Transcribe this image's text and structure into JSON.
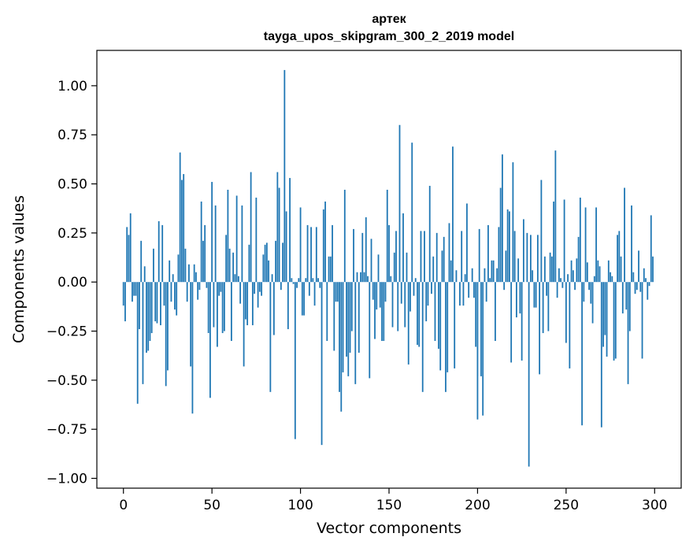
{
  "chart_data": {
    "type": "bar",
    "title": "артек",
    "subtitle": "tayga_upos_skipgram_300_2_2019 model",
    "xlabel": "Vector components",
    "ylabel": "Components values",
    "xlim": [
      -15,
      315
    ],
    "ylim": [
      -1.05,
      1.18
    ],
    "xticks": [
      0,
      50,
      100,
      150,
      200,
      250,
      300
    ],
    "yticks": [
      -1.0,
      -0.75,
      -0.5,
      -0.25,
      0.0,
      0.25,
      0.5,
      0.75,
      1.0
    ],
    "ytick_labels": [
      "−1.00",
      "−0.75",
      "−0.50",
      "−0.25",
      "0.00",
      "0.25",
      "0.50",
      "0.75",
      "1.00"
    ],
    "grid": false,
    "bar_color": "#1f77b4",
    "x": [
      0,
      1,
      2,
      3,
      4,
      5,
      6,
      7,
      8,
      9,
      10,
      11,
      12,
      13,
      14,
      15,
      16,
      17,
      18,
      19,
      20,
      21,
      22,
      23,
      24,
      25,
      26,
      27,
      28,
      29,
      30,
      31,
      32,
      33,
      34,
      35,
      36,
      37,
      38,
      39,
      40,
      41,
      42,
      43,
      44,
      45,
      46,
      47,
      48,
      49,
      50,
      51,
      52,
      53,
      54,
      55,
      56,
      57,
      58,
      59,
      60,
      61,
      62,
      63,
      64,
      65,
      66,
      67,
      68,
      69,
      70,
      71,
      72,
      73,
      74,
      75,
      76,
      77,
      78,
      79,
      80,
      81,
      82,
      83,
      84,
      85,
      86,
      87,
      88,
      89,
      90,
      91,
      92,
      93,
      94,
      95,
      96,
      97,
      98,
      99,
      100,
      101,
      102,
      103,
      104,
      105,
      106,
      107,
      108,
      109,
      110,
      111,
      112,
      113,
      114,
      115,
      116,
      117,
      118,
      119,
      120,
      121,
      122,
      123,
      124,
      125,
      126,
      127,
      128,
      129,
      130,
      131,
      132,
      133,
      134,
      135,
      136,
      137,
      138,
      139,
      140,
      141,
      142,
      143,
      144,
      145,
      146,
      147,
      148,
      149,
      150,
      151,
      152,
      153,
      154,
      155,
      156,
      157,
      158,
      159,
      160,
      161,
      162,
      163,
      164,
      165,
      166,
      167,
      168,
      169,
      170,
      171,
      172,
      173,
      174,
      175,
      176,
      177,
      178,
      179,
      180,
      181,
      182,
      183,
      184,
      185,
      186,
      187,
      188,
      189,
      190,
      191,
      192,
      193,
      194,
      195,
      196,
      197,
      198,
      199,
      200,
      201,
      202,
      203,
      204,
      205,
      206,
      207,
      208,
      209,
      210,
      211,
      212,
      213,
      214,
      215,
      216,
      217,
      218,
      219,
      220,
      221,
      222,
      223,
      224,
      225,
      226,
      227,
      228,
      229,
      230,
      231,
      232,
      233,
      234,
      235,
      236,
      237,
      238,
      239,
      240,
      241,
      242,
      243,
      244,
      245,
      246,
      247,
      248,
      249,
      250,
      251,
      252,
      253,
      254,
      255,
      256,
      257,
      258,
      259,
      260,
      261,
      262,
      263,
      264,
      265,
      266,
      267,
      268,
      269,
      270,
      271,
      272,
      273,
      274,
      275,
      276,
      277,
      278,
      279,
      280,
      281,
      282,
      283,
      284,
      285,
      286,
      287,
      288,
      289,
      290,
      291,
      292,
      293,
      294,
      295,
      296,
      297,
      298,
      299
    ],
    "values": [
      -0.12,
      -0.2,
      0.28,
      0.24,
      0.35,
      -0.1,
      -0.07,
      -0.07,
      -0.62,
      -0.24,
      0.21,
      -0.52,
      0.08,
      -0.36,
      -0.35,
      -0.3,
      -0.26,
      0.17,
      -0.2,
      -0.21,
      0.31,
      -0.22,
      0.29,
      -0.12,
      -0.53,
      -0.45,
      0.11,
      -0.1,
      0.04,
      -0.14,
      -0.17,
      0.14,
      0.66,
      0.52,
      0.55,
      0.17,
      -0.1,
      0.09,
      -0.43,
      -0.67,
      0.09,
      0.05,
      -0.09,
      -0.04,
      0.41,
      0.21,
      0.29,
      -0.03,
      -0.26,
      -0.59,
      0.51,
      -0.23,
      0.39,
      -0.33,
      -0.07,
      -0.05,
      -0.26,
      -0.25,
      0.24,
      0.47,
      0.17,
      -0.3,
      0.15,
      0.04,
      0.44,
      0.03,
      -0.11,
      0.39,
      -0.43,
      -0.19,
      -0.22,
      0.19,
      0.56,
      -0.22,
      -0.06,
      0.43,
      -0.13,
      -0.05,
      -0.07,
      0.14,
      0.19,
      0.2,
      0.11,
      -0.56,
      0.04,
      -0.27,
      0.21,
      0.56,
      0.48,
      -0.04,
      0.2,
      1.08,
      0.36,
      -0.24,
      0.53,
      0.02,
      -0.01,
      -0.8,
      -0.03,
      0.02,
      0.38,
      -0.17,
      -0.17,
      0.02,
      0.29,
      -0.07,
      0.28,
      0.02,
      -0.12,
      0.28,
      0.02,
      -0.03,
      -0.83,
      0.37,
      0.41,
      -0.3,
      0.13,
      0.13,
      0.29,
      -0.35,
      -0.1,
      -0.1,
      -0.56,
      -0.66,
      -0.46,
      0.47,
      -0.38,
      -0.48,
      -0.36,
      -0.25,
      0.27,
      -0.52,
      0.05,
      -0.36,
      0.05,
      0.25,
      0.05,
      0.33,
      0.03,
      -0.49,
      0.22,
      -0.09,
      -0.29,
      -0.14,
      0.14,
      -0.13,
      -0.3,
      -0.3,
      -0.1,
      0.47,
      0.29,
      0.03,
      -0.23,
      0.15,
      0.26,
      -0.25,
      0.8,
      -0.11,
      0.35,
      -0.23,
      0.15,
      -0.42,
      -0.15,
      0.71,
      -0.07,
      0.02,
      -0.32,
      -0.33,
      0.26,
      -0.56,
      0.26,
      -0.2,
      -0.12,
      0.49,
      -0.06,
      0.13,
      -0.3,
      0.25,
      -0.34,
      -0.45,
      0.16,
      0.23,
      -0.56,
      -0.46,
      0.3,
      0.11,
      0.69,
      -0.44,
      0.06,
      0.0,
      -0.12,
      0.26,
      -0.12,
      0.04,
      0.4,
      -0.08,
      0.0,
      0.07,
      -0.08,
      -0.33,
      -0.7,
      0.27,
      -0.48,
      -0.68,
      0.07,
      -0.1,
      0.29,
      0.02,
      0.11,
      0.11,
      -0.3,
      0.07,
      0.28,
      0.48,
      0.65,
      -0.04,
      0.16,
      0.37,
      0.36,
      -0.41,
      0.61,
      0.26,
      -0.18,
      0.12,
      -0.16,
      -0.4,
      0.32,
      0.0,
      0.25,
      -0.94,
      0.24,
      0.06,
      -0.13,
      -0.13,
      0.24,
      -0.47,
      0.52,
      -0.26,
      0.13,
      -0.07,
      -0.25,
      0.15,
      0.13,
      0.41,
      0.67,
      -0.08,
      0.07,
      0.02,
      -0.03,
      0.42,
      -0.31,
      0.04,
      -0.44,
      0.11,
      0.06,
      -0.04,
      0.12,
      0.23,
      0.43,
      -0.73,
      -0.1,
      0.38,
      0.1,
      -0.04,
      -0.11,
      -0.21,
      0.03,
      0.38,
      0.11,
      0.08,
      -0.74,
      -0.33,
      -0.27,
      -0.38,
      0.11,
      0.05,
      0.03,
      -0.4,
      -0.39,
      0.24,
      0.26,
      0.13,
      -0.16,
      0.48,
      -0.14,
      -0.52,
      -0.25,
      0.39,
      0.05,
      -0.06,
      -0.04,
      0.16,
      -0.05,
      -0.39,
      0.07,
      0.02,
      -0.09,
      -0.02,
      0.34,
      0.13
    ]
  }
}
